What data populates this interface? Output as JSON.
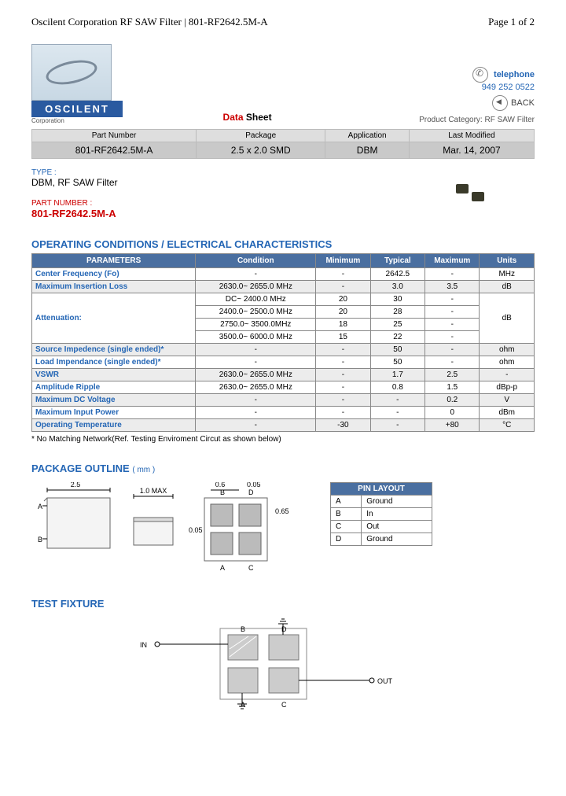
{
  "header": {
    "title": "Oscilent Corporation RF SAW Filter | 801-RF2642.5M-A",
    "page": "Page 1 of 2"
  },
  "logo": {
    "name": "OSCILENT",
    "sub": "Corporation"
  },
  "datasheet_label": {
    "red": "Data",
    "rest": " Sheet"
  },
  "contact": {
    "tel_label": "telephone",
    "tel": "949 252 0522",
    "back": "BACK",
    "prodcat": "Product Category: RF SAW Filter"
  },
  "info": {
    "headers": [
      "Part Number",
      "Package",
      "Application",
      "Last Modified"
    ],
    "values": [
      "801-RF2642.5M-A",
      "2.5 x 2.0 SMD",
      "DBM",
      "Mar. 14, 2007"
    ]
  },
  "type": {
    "label": "TYPE :",
    "value": "DBM, RF SAW Filter"
  },
  "partnum": {
    "label": "PART NUMBER :",
    "value": "801-RF2642.5M-A"
  },
  "sections": {
    "opchar": "OPERATING CONDITIONS / ELECTRICAL CHARACTERISTICS",
    "pkg": "PACKAGE OUTLINE",
    "pkg_unit": "( mm )",
    "test": "TEST FIXTURE"
  },
  "spec": {
    "headers": [
      "PARAMETERS",
      "Condition",
      "Minimum",
      "Typical",
      "Maximum",
      "Units"
    ],
    "rows": [
      {
        "param": "Center Frequency (Fo)",
        "cond": "-",
        "min": "-",
        "typ": "2642.5",
        "max": "-",
        "unit": "MHz",
        "alt": false
      },
      {
        "param": "Maximum Insertion Loss",
        "cond": "2630.0~ 2655.0 MHz",
        "min": "-",
        "typ": "3.0",
        "max": "3.5",
        "unit": "dB",
        "alt": true
      },
      {
        "param": "Attenuation:",
        "cond": "DC~ 2400.0 MHz",
        "min": "20",
        "typ": "30",
        "max": "-",
        "unit": "dB",
        "alt": false,
        "rowspan": 4
      },
      {
        "param": "",
        "cond": "2400.0~ 2500.0 MHz",
        "min": "20",
        "typ": "28",
        "max": "-",
        "unit": "",
        "alt": false
      },
      {
        "param": "",
        "cond": "2750.0~ 3500.0MHz",
        "min": "18",
        "typ": "25",
        "max": "-",
        "unit": "",
        "alt": false
      },
      {
        "param": "",
        "cond": "3500.0~ 6000.0 MHz",
        "min": "15",
        "typ": "22",
        "max": "-",
        "unit": "",
        "alt": false
      },
      {
        "param": "Source Impedence (single ended)*",
        "cond": "-",
        "min": "-",
        "typ": "50",
        "max": "-",
        "unit": "ohm",
        "alt": true
      },
      {
        "param": "Load Impendance (single ended)*",
        "cond": "-",
        "min": "-",
        "typ": "50",
        "max": "-",
        "unit": "ohm",
        "alt": false
      },
      {
        "param": "VSWR",
        "cond": "2630.0~ 2655.0 MHz",
        "min": "-",
        "typ": "1.7",
        "max": "2.5",
        "unit": "-",
        "alt": true
      },
      {
        "param": "Amplitude Ripple",
        "cond": "2630.0~ 2655.0 MHz",
        "min": "-",
        "typ": "0.8",
        "max": "1.5",
        "unit": "dBp-p",
        "alt": false
      },
      {
        "param": "Maximum DC Voltage",
        "cond": "-",
        "min": "-",
        "typ": "-",
        "max": "0.2",
        "unit": "V",
        "alt": true
      },
      {
        "param": "Maximum Input Power",
        "cond": "-",
        "min": "-",
        "typ": "-",
        "max": "0",
        "unit": "dBm",
        "alt": false
      },
      {
        "param": "Operating Temperature",
        "cond": "-",
        "min": "-30",
        "typ": "-",
        "max": "+80",
        "unit": "°C",
        "alt": true
      }
    ],
    "footnote": "* No Matching Network(Ref. Testing Enviroment Circut as shown below)"
  },
  "pin": {
    "header": "PIN LAYOUT",
    "rows": [
      [
        "A",
        "Ground"
      ],
      [
        "B",
        "In"
      ],
      [
        "C",
        "Out"
      ],
      [
        "D",
        "Ground"
      ]
    ]
  },
  "pkg_dims": {
    "w": "2.5",
    "h_label_a": "A",
    "h_label_b": "B",
    "t": "1.0 MAX",
    "pad_w": "0.6",
    "pad_gap": "0.05",
    "pad_h": "0.65",
    "gap_v": "0.05"
  },
  "fixture": {
    "in": "IN",
    "out": "OUT",
    "a": "A",
    "b": "B",
    "c": "C",
    "d": "D"
  }
}
